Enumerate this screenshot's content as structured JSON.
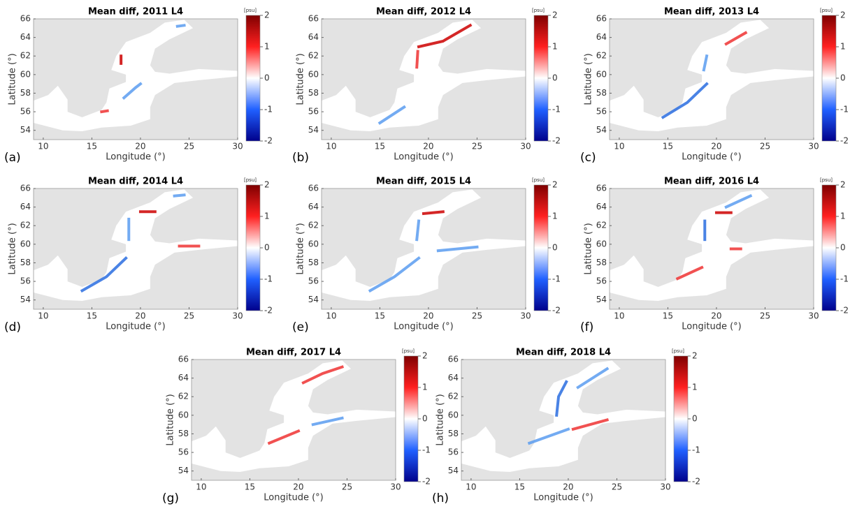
{
  "panels": [
    {
      "label": "(a)",
      "title": "Mean diff, 2011 L4",
      "xlabel": "Longitude (°)",
      "ylabel": "Latitude (°)",
      "xlim": [
        9,
        30
      ],
      "ylim": [
        53,
        66
      ],
      "xticks": [
        10,
        15,
        20,
        25,
        30
      ],
      "yticks": [
        54,
        56,
        58,
        60,
        62,
        64,
        66
      ],
      "colorbar": {
        "unit": "[psu]",
        "lim": [
          -2,
          2
        ],
        "ticks": [
          -2,
          -1,
          0,
          1,
          2
        ]
      }
    },
    {
      "label": "(b)",
      "title": "Mean diff, 2012 L4",
      "xlabel": "Longitude (°)",
      "ylabel": "Latitude (°)",
      "xlim": [
        9,
        30
      ],
      "ylim": [
        53,
        66
      ],
      "xticks": [
        10,
        15,
        20,
        25,
        30
      ],
      "yticks": [
        54,
        56,
        58,
        60,
        62,
        64,
        66
      ],
      "colorbar": {
        "unit": "[psu]",
        "lim": [
          -2,
          2
        ],
        "ticks": [
          -2,
          -1,
          0,
          1,
          2
        ]
      }
    },
    {
      "label": "(c)",
      "title": "Mean diff, 2013 L4",
      "xlabel": "Longitude (°)",
      "ylabel": "Latitude (°)",
      "xlim": [
        9,
        30
      ],
      "ylim": [
        53,
        66
      ],
      "xticks": [
        10,
        15,
        20,
        25,
        30
      ],
      "yticks": [
        54,
        56,
        58,
        60,
        62,
        64,
        66
      ],
      "colorbar": {
        "unit": "[psu]",
        "lim": [
          -2,
          2
        ],
        "ticks": [
          -2,
          -1,
          0,
          1,
          2
        ]
      }
    },
    {
      "label": "(d)",
      "title": "Mean diff, 2014 L4",
      "xlabel": "Longitude (°)",
      "ylabel": "Latitude (°)",
      "xlim": [
        9,
        30
      ],
      "ylim": [
        53,
        66
      ],
      "xticks": [
        10,
        15,
        20,
        25,
        30
      ],
      "yticks": [
        54,
        56,
        58,
        60,
        62,
        64,
        66
      ],
      "colorbar": {
        "unit": "[psu]",
        "lim": [
          -2,
          2
        ],
        "ticks": [
          -2,
          -1,
          0,
          1,
          2
        ]
      }
    },
    {
      "label": "(e)",
      "title": "Mean diff, 2015 L4",
      "xlabel": "Longitude (°)",
      "ylabel": "Latitude (°)",
      "xlim": [
        9,
        30
      ],
      "ylim": [
        53,
        66
      ],
      "xticks": [
        10,
        15,
        20,
        25,
        30
      ],
      "yticks": [
        54,
        56,
        58,
        60,
        62,
        64,
        66
      ],
      "colorbar": {
        "unit": "[psu]",
        "lim": [
          -2,
          2
        ],
        "ticks": [
          -2,
          -1,
          0,
          1,
          2
        ]
      }
    },
    {
      "label": "(f)",
      "title": "Mean diff, 2016 L4",
      "xlabel": "Longitude (°)",
      "ylabel": "Latitude (°)",
      "xlim": [
        9,
        30
      ],
      "ylim": [
        53,
        66
      ],
      "xticks": [
        10,
        15,
        20,
        25,
        30
      ],
      "yticks": [
        54,
        56,
        58,
        60,
        62,
        64,
        66
      ],
      "colorbar": {
        "unit": "[psu]",
        "lim": [
          -2,
          2
        ],
        "ticks": [
          -2,
          -1,
          0,
          1,
          2
        ]
      }
    },
    {
      "label": "(g)",
      "title": "Mean diff, 2017 L4",
      "xlabel": "Longitude (°)",
      "ylabel": "Latitude (°)",
      "xlim": [
        9,
        30
      ],
      "ylim": [
        53,
        66
      ],
      "xticks": [
        10,
        15,
        20,
        25,
        30
      ],
      "yticks": [
        54,
        56,
        58,
        60,
        62,
        64,
        66
      ],
      "colorbar": {
        "unit": "[psu]",
        "lim": [
          -2,
          2
        ],
        "ticks": [
          -2,
          -1,
          0,
          1,
          2
        ]
      }
    },
    {
      "label": "(h)",
      "title": "Mean diff, 2018 L4",
      "xlabel": "Longitude (°)",
      "ylabel": "Latitude (°)",
      "xlim": [
        9,
        30
      ],
      "ylim": [
        53,
        66
      ],
      "xticks": [
        10,
        15,
        20,
        25,
        30
      ],
      "yticks": [
        54,
        56,
        58,
        60,
        62,
        64,
        66
      ],
      "colorbar": {
        "unit": "[psu]",
        "lim": [
          -2,
          2
        ],
        "ticks": [
          -2,
          -1,
          0,
          1,
          2
        ]
      }
    }
  ]
}
